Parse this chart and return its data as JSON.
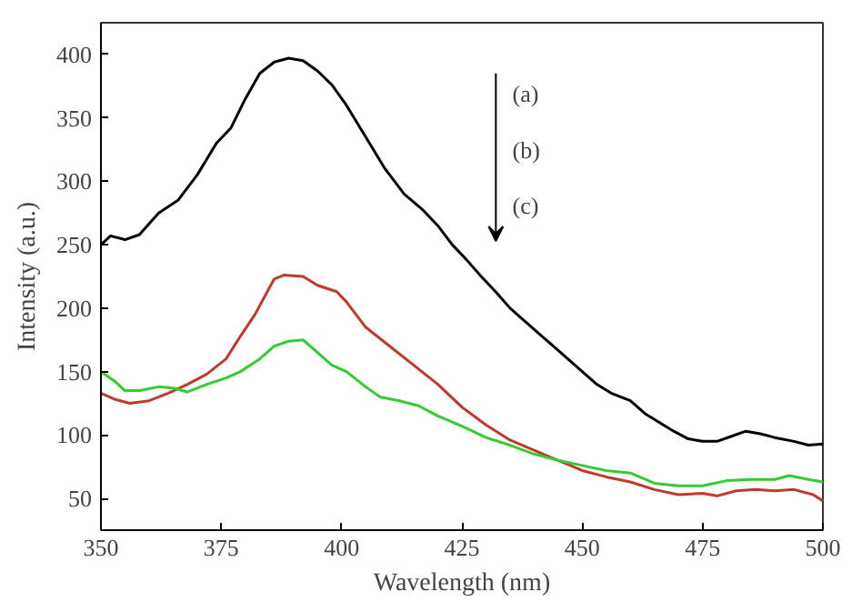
{
  "chart_data": {
    "type": "line",
    "xlabel": "Wavelength (nm)",
    "ylabel": "Intensity (a.u.)",
    "xlim": [
      350,
      500
    ],
    "ylim": [
      25,
      425
    ],
    "xticks": [
      350,
      375,
      400,
      425,
      450,
      475,
      500
    ],
    "yticks": [
      50,
      100,
      150,
      200,
      250,
      300,
      350,
      400
    ],
    "grid": false,
    "line_style": "solid",
    "marker": "none",
    "annotations": [
      "(a)",
      "(b)",
      "(c)"
    ],
    "series": [
      {
        "color": "#000000",
        "x": [
          350,
          352,
          355,
          358,
          362,
          366,
          370,
          374,
          377,
          380,
          383,
          386,
          389,
          392,
          395,
          398,
          401,
          405,
          409,
          413,
          417,
          420,
          423,
          426,
          429,
          432,
          435,
          438,
          441,
          444,
          447,
          450,
          453,
          456,
          460,
          463,
          466,
          469,
          472,
          475,
          478,
          481,
          484,
          487,
          490,
          494,
          497,
          500
        ],
        "values": [
          250,
          257,
          254,
          258,
          275,
          285,
          305,
          330,
          342,
          365,
          385,
          394,
          397,
          395,
          387,
          376,
          360,
          335,
          310,
          290,
          277,
          265,
          250,
          238,
          225,
          213,
          200,
          190,
          180,
          170,
          160,
          150,
          140,
          133,
          127,
          117,
          110,
          103,
          97,
          95,
          95,
          99,
          103,
          101,
          98,
          95,
          92,
          93
        ]
      },
      {
        "color": "#c0392b",
        "x": [
          350,
          353,
          356,
          360,
          364,
          368,
          372,
          376,
          379,
          382,
          386,
          388,
          392,
          395,
          399,
          401,
          405,
          410,
          415,
          420,
          425,
          430,
          435,
          440,
          445,
          450,
          455,
          460,
          465,
          470,
          475,
          478,
          482,
          486,
          490,
          494,
          498,
          500
        ],
        "values": [
          133,
          128,
          125,
          127,
          133,
          140,
          148,
          160,
          178,
          195,
          223,
          226,
          225,
          218,
          213,
          205,
          185,
          170,
          155,
          140,
          122,
          108,
          96,
          88,
          80,
          72,
          67,
          63,
          57,
          53,
          54,
          52,
          56,
          57,
          56,
          57,
          53,
          48
        ]
      },
      {
        "color": "#33cc33",
        "x": [
          350,
          353,
          355,
          358,
          362,
          365,
          368,
          372,
          376,
          379,
          383,
          386,
          389,
          392,
          395,
          398,
          401,
          405,
          408,
          412,
          416,
          420,
          425,
          430,
          435,
          440,
          445,
          450,
          455,
          460,
          465,
          470,
          475,
          480,
          485,
          490,
          493,
          497,
          500
        ],
        "values": [
          150,
          142,
          135,
          135,
          138,
          137,
          134,
          140,
          145,
          150,
          160,
          170,
          174,
          175,
          165,
          155,
          150,
          138,
          130,
          127,
          123,
          115,
          107,
          98,
          92,
          85,
          80,
          76,
          72,
          70,
          62,
          60,
          60,
          64,
          65,
          65,
          68,
          65,
          63
        ]
      }
    ]
  }
}
